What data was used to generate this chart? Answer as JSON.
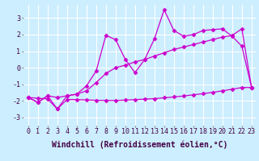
{
  "xlabel": "Windchill (Refroidissement éolien,°C)",
  "background_color": "#cceeff",
  "grid_color": "#ffffff",
  "line_color": "#cc00cc",
  "xlim": [
    -0.5,
    23.5
  ],
  "ylim": [
    -3.5,
    3.8
  ],
  "xticks": [
    0,
    1,
    2,
    3,
    4,
    5,
    6,
    7,
    8,
    9,
    10,
    11,
    12,
    13,
    14,
    15,
    16,
    17,
    18,
    19,
    20,
    21,
    22,
    23
  ],
  "yticks": [
    -3,
    -2,
    -1,
    0,
    1,
    2,
    3
  ],
  "series1_x": [
    0,
    1,
    2,
    3,
    4,
    5,
    6,
    7,
    8,
    9,
    10,
    11,
    12,
    13,
    14,
    15,
    16,
    17,
    18,
    19,
    20,
    21,
    22,
    23
  ],
  "series1_y": [
    -1.8,
    -2.1,
    -1.7,
    -2.5,
    -1.7,
    -1.6,
    -1.1,
    -0.2,
    1.95,
    1.7,
    0.5,
    -0.3,
    0.5,
    1.75,
    3.5,
    2.25,
    1.9,
    2.0,
    2.25,
    2.3,
    2.35,
    1.9,
    1.3,
    -1.2
  ],
  "series2_x": [
    0,
    1,
    2,
    3,
    4,
    5,
    6,
    7,
    8,
    9,
    10,
    11,
    12,
    13,
    14,
    15,
    16,
    17,
    18,
    19,
    20,
    21,
    22,
    23
  ],
  "series2_y": [
    -1.8,
    -2.1,
    -1.7,
    -1.8,
    -1.7,
    -1.6,
    -1.4,
    -0.9,
    -0.35,
    0.0,
    0.15,
    0.35,
    0.5,
    0.7,
    0.9,
    1.1,
    1.25,
    1.4,
    1.55,
    1.7,
    1.85,
    1.95,
    2.35,
    -1.2
  ],
  "series3_x": [
    0,
    1,
    2,
    3,
    4,
    5,
    6,
    7,
    8,
    9,
    10,
    11,
    12,
    13,
    14,
    15,
    16,
    17,
    18,
    19,
    20,
    21,
    22,
    23
  ],
  "series3_y": [
    -1.8,
    -1.85,
    -1.88,
    -2.5,
    -1.92,
    -1.93,
    -1.95,
    -1.97,
    -1.98,
    -1.98,
    -1.96,
    -1.93,
    -1.9,
    -1.87,
    -1.82,
    -1.77,
    -1.71,
    -1.64,
    -1.57,
    -1.49,
    -1.4,
    -1.3,
    -1.2,
    -1.2
  ],
  "marker": "D",
  "marker_size": 2.5,
  "line_width": 0.9,
  "xlabel_fontsize": 7,
  "tick_fontsize": 6
}
